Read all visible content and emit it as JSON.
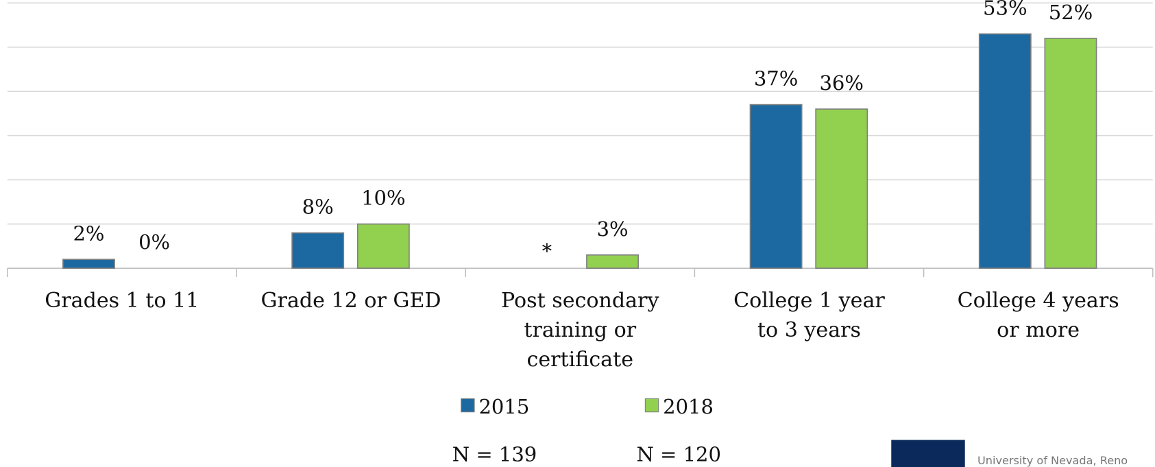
{
  "chart_data": {
    "type": "bar",
    "categories": [
      "Grades 1 to 11",
      "Grade 12 or GED",
      "Post secondary\ntraining or\ncertificate",
      "College 1 year\nto 3 years",
      "College 4 years\nor more"
    ],
    "series": [
      {
        "name": "2015",
        "color": "#1c69a1",
        "values": [
          2,
          8,
          null,
          37,
          53
        ],
        "value_labels": [
          "2%",
          "8%",
          "*",
          "37%",
          "53%"
        ],
        "note": "N = 139"
      },
      {
        "name": "2018",
        "color": "#92d050",
        "values": [
          0,
          10,
          3,
          36,
          52
        ],
        "value_labels": [
          "0%",
          "10%",
          "3%",
          "36%",
          "52%"
        ],
        "note": "N = 120"
      }
    ],
    "ylim": [
      0,
      60
    ],
    "yticks": [
      0,
      10,
      20,
      30,
      40,
      50,
      60
    ],
    "grid": true,
    "logo_text": "University of Nevada, Reno"
  }
}
